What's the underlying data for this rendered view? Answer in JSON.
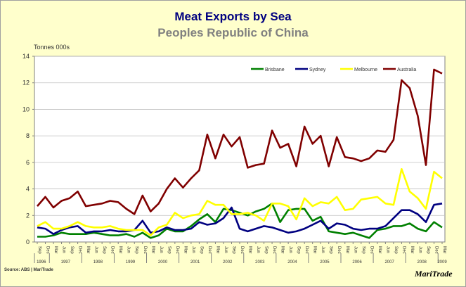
{
  "page": {
    "source": "Source: ABS | MariTrade",
    "logo": "MariTrade"
  },
  "chart_data": {
    "type": "line",
    "title": "Meat Exports by Sea",
    "subtitle": "Peoples Republic of China",
    "ylabel": "Tonnes 000s",
    "xlabel": "",
    "ylim": [
      0,
      14
    ],
    "yticks": [
      0,
      2,
      4,
      6,
      8,
      10,
      12,
      14
    ],
    "grid": "horizontal",
    "legend_position": "top-right",
    "month_cycle": [
      "Sep",
      "Dec",
      "Mar",
      "Jun"
    ],
    "x": [
      "Sep 1996",
      "Dec 1996",
      "Mar 1997",
      "Jun 1997",
      "Sep 1997",
      "Dec 1997",
      "Mar 1998",
      "Jun 1998",
      "Sep 1998",
      "Dec 1998",
      "Mar 1999",
      "Jun 1999",
      "Sep 1999",
      "Dec 1999",
      "Mar 2000",
      "Jun 2000",
      "Sep 2000",
      "Dec 2000",
      "Mar 2001",
      "Jun 2001",
      "Sep 2001",
      "Dec 2001",
      "Mar 2002",
      "Jun 2002",
      "Sep 2002",
      "Dec 2002",
      "Mar 2003",
      "Jun 2003",
      "Sep 2003",
      "Dec 2003",
      "Mar 2004",
      "Jun 2004",
      "Sep 2004",
      "Dec 2004",
      "Mar 2005",
      "Jun 2005",
      "Sep 2005",
      "Dec 2005",
      "Mar 2006",
      "Jun 2006",
      "Sep 2006",
      "Dec 2006",
      "Mar 2007",
      "Jun 2007",
      "Sep 2007",
      "Dec 2007",
      "Mar 2008",
      "Jun 2008",
      "Sep 2008",
      "Dec 2008",
      "Mar 2009"
    ],
    "year_labels": [
      "1996",
      "1997",
      "1998",
      "1999",
      "2000",
      "2001",
      "2002",
      "2003",
      "2004",
      "2005",
      "2006",
      "2007",
      "2008",
      "2009"
    ],
    "series": [
      {
        "name": "Brisbane",
        "color": "#008000",
        "values": [
          0.4,
          0.4,
          0.5,
          0.7,
          0.6,
          0.6,
          0.6,
          0.7,
          0.6,
          0.5,
          0.5,
          0.6,
          0.4,
          0.7,
          0.3,
          0.5,
          1.0,
          0.8,
          0.8,
          1.2,
          1.7,
          2.1,
          1.5,
          2.5,
          2.4,
          2.2,
          2.0,
          2.3,
          2.5,
          2.9,
          1.5,
          2.4,
          2.5,
          2.5,
          1.6,
          1.9,
          0.8,
          0.7,
          0.6,
          0.7,
          0.5,
          0.3,
          0.9,
          1.0,
          1.2,
          1.2,
          1.4,
          1.0,
          0.8,
          1.5,
          1.1
        ]
      },
      {
        "name": "Sydney",
        "color": "#000080",
        "values": [
          1.1,
          1.0,
          0.6,
          0.9,
          1.1,
          1.2,
          0.7,
          0.8,
          0.8,
          0.9,
          0.8,
          0.8,
          0.9,
          1.6,
          0.7,
          0.8,
          1.1,
          0.9,
          0.9,
          1.0,
          1.5,
          1.3,
          1.4,
          1.8,
          2.6,
          1.0,
          0.8,
          1.0,
          1.2,
          1.1,
          0.9,
          0.7,
          0.8,
          1.0,
          1.3,
          1.6,
          1.0,
          1.4,
          1.3,
          1.0,
          0.9,
          1.0,
          1.0,
          1.2,
          1.8,
          2.4,
          2.4,
          2.1,
          1.5,
          2.8,
          2.9
        ]
      },
      {
        "name": "Melbourne",
        "color": "#ffff00",
        "values": [
          1.2,
          1.5,
          1.0,
          1.0,
          1.2,
          1.5,
          1.2,
          1.1,
          1.1,
          1.2,
          1.0,
          0.9,
          0.9,
          0.9,
          0.5,
          1.1,
          1.3,
          2.2,
          1.8,
          2.0,
          2.1,
          3.1,
          2.8,
          2.8,
          2.1,
          2.1,
          2.2,
          2.0,
          1.6,
          2.9,
          2.9,
          2.7,
          1.7,
          3.3,
          2.7,
          3.0,
          2.9,
          3.4,
          2.4,
          2.5,
          3.2,
          3.3,
          3.4,
          2.9,
          2.8,
          5.5,
          3.8,
          3.3,
          2.5,
          5.3,
          4.8
        ]
      },
      {
        "name": "Australia",
        "color": "#800000",
        "values": [
          2.7,
          3.4,
          2.6,
          3.1,
          3.3,
          3.8,
          2.7,
          2.8,
          2.9,
          3.1,
          3.0,
          2.5,
          2.1,
          3.5,
          2.3,
          2.9,
          4.0,
          4.8,
          4.1,
          4.8,
          5.4,
          8.1,
          6.3,
          8.1,
          7.2,
          7.9,
          5.6,
          5.8,
          5.9,
          8.4,
          7.1,
          7.4,
          5.7,
          8.7,
          7.4,
          8.0,
          5.7,
          7.9,
          6.4,
          6.3,
          6.1,
          6.3,
          6.9,
          6.8,
          7.7,
          12.2,
          11.6,
          9.5,
          5.8,
          13.0,
          12.7
        ]
      }
    ]
  }
}
